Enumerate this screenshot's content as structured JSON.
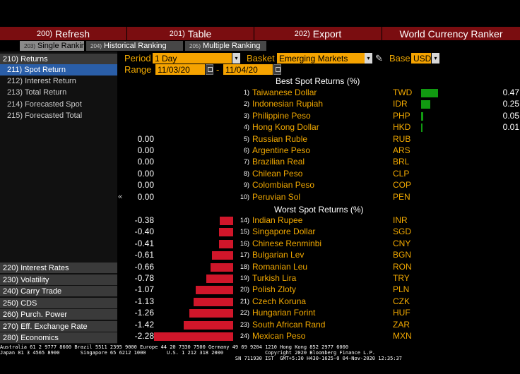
{
  "menubar": [
    {
      "num": "200)",
      "label": "Refresh"
    },
    {
      "num": "201)",
      "label": "Table"
    },
    {
      "num": "202)",
      "label": "Export"
    },
    {
      "num": "",
      "label": "World Currency Ranker"
    }
  ],
  "tabs": [
    {
      "num": "203)",
      "label": "Single Ranking"
    },
    {
      "num": "204)",
      "label": "Historical Ranking"
    },
    {
      "num": "205)",
      "label": "Multiple Ranking"
    }
  ],
  "sidebar": {
    "header": "210) Returns",
    "items": [
      "211) Spot Return",
      "212) Interest Return",
      "213) Total Return",
      "214) Forecasted Spot",
      "215) Forecasted Total"
    ],
    "bottom": [
      "220) Interest Rates",
      "230) Volatility",
      "240) Carry Trade",
      "250) CDS",
      "260) Purch. Power",
      "270) Eff. Exchange Rate",
      "280) Economics"
    ],
    "collapse": "«"
  },
  "controls": {
    "period_label": "Period",
    "period_value": "1 Day",
    "basket_label": "Basket",
    "basket_value": "Emerging Markets",
    "base_label": "Base",
    "base_value": "USD",
    "range_label": "Range",
    "range_start": "11/03/20",
    "range_dash": "-",
    "range_end": "11/04/20",
    "dropdown_glyph": "▾",
    "pencil_glyph": "✎"
  },
  "sections": {
    "best": "Best Spot Returns (%)",
    "worst": "Worst Spot Returns (%)"
  },
  "colors": {
    "positive": "#119a11",
    "negative": "#d0162a",
    "accent": "#f2a900",
    "menu": "#7a0d10"
  },
  "chart_data": {
    "type": "bar",
    "best": [
      {
        "rank": "1)",
        "name": "Taiwanese Dollar",
        "code": "TWD",
        "value": 0.47
      },
      {
        "rank": "2)",
        "name": "Indonesian Rupiah",
        "code": "IDR",
        "value": 0.25
      },
      {
        "rank": "3)",
        "name": "Philippine Peso",
        "code": "PHP",
        "value": 0.05
      },
      {
        "rank": "4)",
        "name": "Hong Kong Dollar",
        "code": "HKD",
        "value": 0.01
      },
      {
        "rank": "5)",
        "name": "Russian Ruble",
        "code": "RUB",
        "value": 0.0
      },
      {
        "rank": "6)",
        "name": "Argentine Peso",
        "code": "ARS",
        "value": 0.0
      },
      {
        "rank": "7)",
        "name": "Brazilian Real",
        "code": "BRL",
        "value": 0.0
      },
      {
        "rank": "8)",
        "name": "Chilean Peso",
        "code": "CLP",
        "value": 0.0
      },
      {
        "rank": "9)",
        "name": "Colombian Peso",
        "code": "COP",
        "value": 0.0
      },
      {
        "rank": "10)",
        "name": "Peruvian Sol",
        "code": "PEN",
        "value": 0.0
      }
    ],
    "worst": [
      {
        "rank": "14)",
        "name": "Indian Rupee",
        "code": "INR",
        "value": -0.38
      },
      {
        "rank": "15)",
        "name": "Singapore Dollar",
        "code": "SGD",
        "value": -0.4
      },
      {
        "rank": "16)",
        "name": "Chinese Renminbi",
        "code": "CNY",
        "value": -0.41
      },
      {
        "rank": "17)",
        "name": "Bulgarian Lev",
        "code": "BGN",
        "value": -0.61
      },
      {
        "rank": "18)",
        "name": "Romanian Leu",
        "code": "RON",
        "value": -0.66
      },
      {
        "rank": "19)",
        "name": "Turkish Lira",
        "code": "TRY",
        "value": -0.78
      },
      {
        "rank": "20)",
        "name": "Polish Zloty",
        "code": "PLN",
        "value": -1.07
      },
      {
        "rank": "21)",
        "name": "Czech Koruna",
        "code": "CZK",
        "value": -1.13
      },
      {
        "rank": "22)",
        "name": "Hungarian Forint",
        "code": "HUF",
        "value": -1.26
      },
      {
        "rank": "23)",
        "name": "South African Rand",
        "code": "ZAR",
        "value": -1.42
      },
      {
        "rank": "24)",
        "name": "Mexican Peso",
        "code": "MXN",
        "value": -2.28
      }
    ]
  },
  "footer": {
    "line1": "Australia 61 2 9777 8600 Brazil 5511 2395 9000 Europe 44 20 7330 7500 Germany 49 69 9204 1210 Hong Kong 852 2977 6000",
    "line2": "Japan 81 3 4565 8900       Singapore 65 6212 1000       U.S. 1 212 318 2000              Copyright 2020 Bloomberg Finance L.P.",
    "line3": "                                                                               SN 711930 IST  GMT+5:30 H430-1625-0 04-Nov-2020 12:35:37"
  }
}
